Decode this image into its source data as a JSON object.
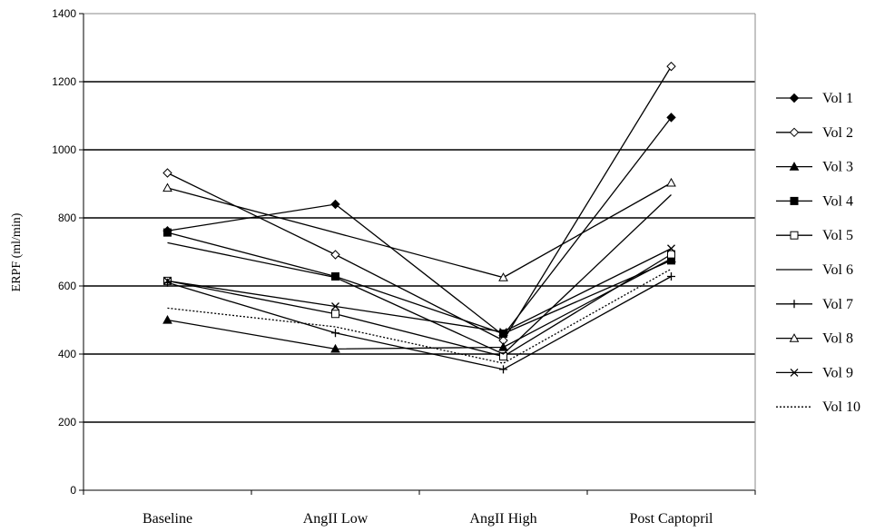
{
  "chart_data": {
    "type": "line",
    "title": "",
    "xlabel": "",
    "ylabel": "ERPF (ml/min)",
    "ylim": [
      0,
      1400
    ],
    "yticks": [
      0,
      200,
      400,
      600,
      800,
      1000,
      1200,
      1400
    ],
    "grid": "horizontal",
    "legend_position": "right",
    "categories": [
      "Baseline",
      "AngII Low",
      "AngII High",
      "Post Captopril"
    ],
    "series": [
      {
        "name": "Vol 1",
        "marker": "filled-diamond",
        "line": "solid",
        "values": [
          762,
          840,
          455,
          1095
        ]
      },
      {
        "name": "Vol 2",
        "marker": "open-diamond",
        "line": "solid",
        "values": [
          932,
          692,
          440,
          1245
        ]
      },
      {
        "name": "Vol 3",
        "marker": "filled-triangle",
        "line": "solid",
        "values": [
          500,
          415,
          420,
          680
        ]
      },
      {
        "name": "Vol 4",
        "marker": "filled-square",
        "line": "solid",
        "values": [
          757,
          628,
          460,
          675
        ]
      },
      {
        "name": "Vol 5",
        "marker": "open-square",
        "line": "solid",
        "values": [
          615,
          518,
          393,
          693
        ]
      },
      {
        "name": "Vol 6",
        "marker": "none",
        "line": "solid",
        "values": [
          727,
          625,
          400,
          868
        ]
      },
      {
        "name": "Vol 7",
        "marker": "plus",
        "line": "solid",
        "values": [
          610,
          462,
          355,
          628
        ]
      },
      {
        "name": "Vol 8",
        "marker": "open-triangle",
        "line": "solid",
        "values": [
          888,
          null,
          625,
          903
        ]
      },
      {
        "name": "Vol 9",
        "marker": "x",
        "line": "solid",
        "values": [
          615,
          540,
          465,
          710
        ]
      },
      {
        "name": "Vol 10",
        "marker": "none",
        "line": "dotted",
        "values": [
          535,
          480,
          373,
          650
        ]
      }
    ]
  }
}
